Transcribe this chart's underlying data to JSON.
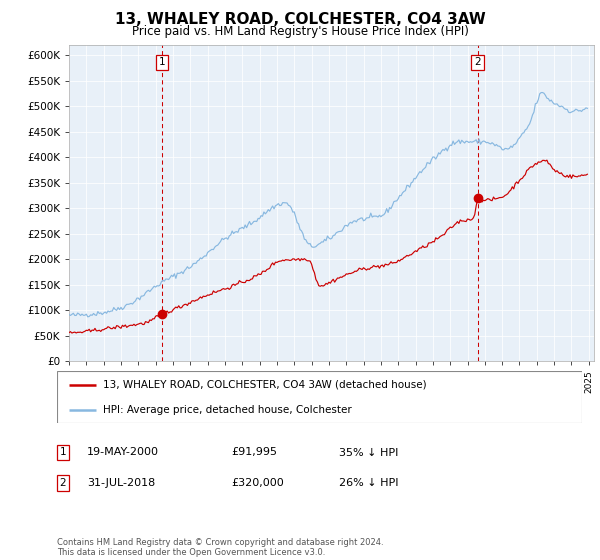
{
  "title": "13, WHALEY ROAD, COLCHESTER, CO4 3AW",
  "subtitle": "Price paid vs. HM Land Registry's House Price Index (HPI)",
  "ylim": [
    0,
    620000
  ],
  "yticks": [
    0,
    50000,
    100000,
    150000,
    200000,
    250000,
    300000,
    350000,
    400000,
    450000,
    500000,
    550000,
    600000
  ],
  "plot_bg": "#e8f0f8",
  "line1_color": "#cc0000",
  "line2_color": "#88b8e0",
  "vline_color": "#cc0000",
  "sale1_year": 2000.38,
  "sale1_price": 91995,
  "sale2_year": 2018.58,
  "sale2_price": 320000,
  "legend1": "13, WHALEY ROAD, COLCHESTER, CO4 3AW (detached house)",
  "legend2": "HPI: Average price, detached house, Colchester",
  "note1_label": "1",
  "note1_date": "19-MAY-2000",
  "note1_price": "£91,995",
  "note1_pct": "35% ↓ HPI",
  "note2_label": "2",
  "note2_date": "31-JUL-2018",
  "note2_price": "£320,000",
  "note2_pct": "26% ↓ HPI",
  "footer": "Contains HM Land Registry data © Crown copyright and database right 2024.\nThis data is licensed under the Open Government Licence v3.0."
}
